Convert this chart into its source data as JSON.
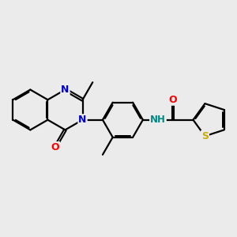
{
  "background_color": "#ebebeb",
  "atom_colors": {
    "C": "#000000",
    "N": "#0000cc",
    "O": "#ff0000",
    "S": "#ccaa00",
    "H": "#000000"
  },
  "bond_color": "#000000",
  "font_size": 8.5,
  "line_width": 1.6,
  "figsize": [
    3.0,
    3.0
  ],
  "dpi": 100
}
